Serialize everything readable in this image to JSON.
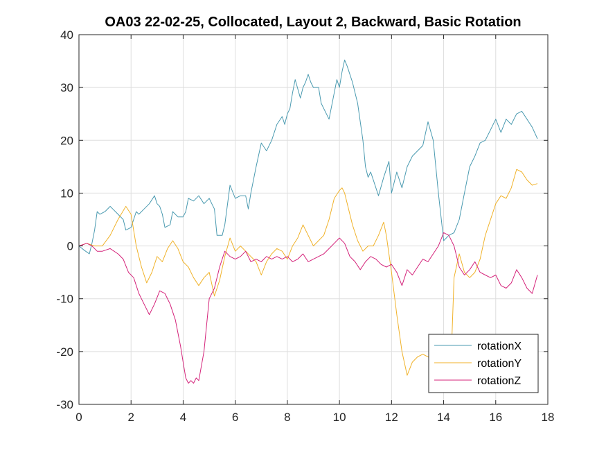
{
  "chart_data": {
    "type": "line",
    "title": "OA03 22-02-25, Collocated, Layout 2, Backward, Basic Rotation",
    "xlabel": "",
    "ylabel": "",
    "xlim": [
      0,
      18
    ],
    "ylim": [
      -30,
      40
    ],
    "xticks": [
      0,
      2,
      4,
      6,
      8,
      10,
      12,
      14,
      16,
      18
    ],
    "yticks": [
      -30,
      -20,
      -10,
      0,
      10,
      20,
      30,
      40
    ],
    "grid": true,
    "legend_position": "bottom-right",
    "series": [
      {
        "name": "rotationX",
        "color": "#4a9ab0",
        "x": [
          0,
          0.2,
          0.4,
          0.5,
          0.6,
          0.7,
          0.8,
          1.0,
          1.2,
          1.3,
          1.5,
          1.7,
          1.8,
          2.0,
          2.1,
          2.2,
          2.3,
          2.5,
          2.7,
          2.9,
          3.0,
          3.1,
          3.2,
          3.3,
          3.5,
          3.6,
          3.8,
          4.0,
          4.1,
          4.2,
          4.4,
          4.6,
          4.8,
          5.0,
          5.1,
          5.2,
          5.3,
          5.5,
          5.6,
          5.8,
          6.0,
          6.2,
          6.4,
          6.5,
          6.6,
          6.8,
          7.0,
          7.2,
          7.4,
          7.6,
          7.8,
          7.9,
          8.0,
          8.1,
          8.2,
          8.3,
          8.5,
          8.6,
          8.7,
          8.8,
          8.9,
          9.0,
          9.2,
          9.3,
          9.5,
          9.6,
          9.8,
          9.9,
          10.0,
          10.1,
          10.2,
          10.3,
          10.5,
          10.7,
          10.9,
          11.0,
          11.1,
          11.2,
          11.3,
          11.5,
          11.7,
          11.9,
          12.0,
          12.2,
          12.4,
          12.6,
          12.8,
          13.0,
          13.2,
          13.4,
          13.6,
          13.8,
          14.0,
          14.2,
          14.4,
          14.6,
          14.8,
          15.0,
          15.2,
          15.4,
          15.6,
          15.8,
          16.0,
          16.2,
          16.4,
          16.6,
          16.8,
          17.0,
          17.2,
          17.4,
          17.6
        ],
        "y": [
          0,
          -0.8,
          -1.5,
          0.5,
          3,
          6.5,
          6,
          6.5,
          7.5,
          7,
          6,
          5,
          3,
          3.5,
          5,
          6.5,
          6,
          7,
          8,
          9.5,
          8,
          7.5,
          6,
          3.5,
          4,
          6.5,
          5.5,
          5.5,
          6.5,
          9,
          8.5,
          9.5,
          8,
          9,
          8,
          7,
          2,
          2,
          4,
          11.5,
          9,
          9.5,
          9.5,
          7,
          10,
          15,
          19.5,
          18,
          20,
          23,
          24.5,
          23,
          25,
          26,
          29,
          31.5,
          28,
          30,
          31,
          32.5,
          31,
          30,
          30,
          27,
          25,
          24,
          29,
          31.5,
          30,
          33,
          35.2,
          34,
          31,
          27,
          20,
          15,
          13,
          14,
          12.5,
          9.5,
          13,
          16,
          10,
          14,
          11,
          15,
          17,
          18,
          19,
          23.5,
          20,
          10,
          1,
          2,
          2.5,
          5,
          10,
          15,
          17,
          19.5,
          20,
          22,
          24,
          21.5,
          24,
          23,
          25,
          25.5,
          24,
          22.5,
          20.3
        ]
      },
      {
        "name": "rotationY",
        "color": "#f0b22a",
        "x": [
          0,
          0.3,
          0.6,
          0.9,
          1.2,
          1.5,
          1.8,
          2.0,
          2.2,
          2.4,
          2.6,
          2.8,
          3.0,
          3.2,
          3.4,
          3.6,
          3.8,
          4.0,
          4.2,
          4.4,
          4.6,
          4.8,
          5.0,
          5.2,
          5.4,
          5.6,
          5.8,
          6.0,
          6.2,
          6.4,
          6.6,
          6.8,
          7.0,
          7.2,
          7.4,
          7.6,
          7.8,
          8.0,
          8.2,
          8.4,
          8.6,
          8.8,
          9.0,
          9.2,
          9.4,
          9.6,
          9.8,
          10.0,
          10.1,
          10.2,
          10.3,
          10.5,
          10.7,
          10.9,
          11.1,
          11.3,
          11.5,
          11.7,
          11.8,
          12.0,
          12.2,
          12.4,
          12.6,
          12.8,
          13.0,
          13.2,
          13.4,
          13.6,
          13.8,
          14.0,
          14.2,
          14.3,
          14.4,
          14.6,
          14.8,
          15.0,
          15.2,
          15.4,
          15.6,
          15.8,
          16.0,
          16.2,
          16.4,
          16.6,
          16.8,
          17.0,
          17.2,
          17.4,
          17.6
        ],
        "y": [
          0,
          0.5,
          0,
          0,
          2,
          5,
          7.5,
          6,
          0,
          -4,
          -7,
          -5,
          -2,
          -3,
          -0.5,
          1,
          -0.5,
          -3,
          -4,
          -6,
          -7.5,
          -6,
          -5,
          -9.5,
          -6.5,
          -2,
          1.5,
          -1,
          0,
          -1,
          -2,
          -3,
          -5.5,
          -3,
          -1.5,
          -0.5,
          -1,
          -2.5,
          0,
          1.5,
          4,
          2,
          0,
          1,
          2,
          5,
          9,
          10.5,
          11,
          10,
          8,
          4,
          1,
          -1,
          0,
          0,
          2,
          4.5,
          2,
          -5,
          -13,
          -20,
          -24.5,
          -22,
          -21,
          -20.5,
          -21,
          -21.5,
          -20.5,
          -19,
          -18,
          -20,
          -6,
          -1.5,
          -5,
          -6,
          -5,
          -2.5,
          2,
          5,
          8,
          9.5,
          9,
          11,
          14.5,
          14,
          12.5,
          11.5,
          11.8
        ]
      },
      {
        "name": "rotationZ",
        "color": "#d4237a",
        "x": [
          0,
          0.3,
          0.5,
          0.7,
          0.9,
          1.2,
          1.5,
          1.7,
          1.9,
          2.1,
          2.3,
          2.5,
          2.7,
          2.9,
          3.1,
          3.3,
          3.5,
          3.7,
          3.9,
          4.0,
          4.1,
          4.2,
          4.3,
          4.4,
          4.5,
          4.6,
          4.8,
          5.0,
          5.2,
          5.4,
          5.6,
          5.8,
          6.0,
          6.2,
          6.4,
          6.6,
          6.8,
          7.0,
          7.2,
          7.4,
          7.6,
          7.8,
          8.0,
          8.2,
          8.4,
          8.6,
          8.8,
          9.0,
          9.2,
          9.4,
          9.6,
          9.8,
          10.0,
          10.2,
          10.4,
          10.6,
          10.8,
          11.0,
          11.2,
          11.4,
          11.6,
          11.8,
          12.0,
          12.2,
          12.4,
          12.6,
          12.8,
          13.0,
          13.2,
          13.4,
          13.6,
          13.8,
          14.0,
          14.2,
          14.4,
          14.6,
          14.8,
          15.0,
          15.2,
          15.4,
          15.6,
          15.8,
          16.0,
          16.2,
          16.4,
          16.6,
          16.8,
          17.0,
          17.2,
          17.4,
          17.6
        ],
        "y": [
          0,
          0.5,
          0,
          -1,
          -1,
          -0.5,
          -1.5,
          -2.5,
          -5,
          -6,
          -9,
          -11,
          -13,
          -11,
          -8.5,
          -9,
          -11,
          -14,
          -19,
          -22,
          -25,
          -26,
          -25.5,
          -26,
          -25,
          -25.5,
          -20,
          -10,
          -8,
          -4,
          -1,
          -2,
          -2.5,
          -2,
          -1,
          -3,
          -2.5,
          -3,
          -2,
          -2.5,
          -2,
          -2.5,
          -2,
          -3,
          -2.5,
          -1.5,
          -3,
          -2.5,
          -2,
          -1.5,
          -0.5,
          0.5,
          1.5,
          0.5,
          -2,
          -3,
          -4.5,
          -3,
          -2,
          -2.5,
          -3.5,
          -4,
          -3.5,
          -5,
          -7.5,
          -4.5,
          -5.5,
          -4,
          -2.5,
          -3,
          -1.5,
          0,
          2.5,
          2,
          0,
          -4,
          -5.5,
          -4.5,
          -3,
          -5,
          -5.5,
          -6,
          -5.5,
          -7.5,
          -8,
          -7,
          -4.5,
          -6,
          -8,
          -9,
          -5.5
        ]
      }
    ]
  }
}
